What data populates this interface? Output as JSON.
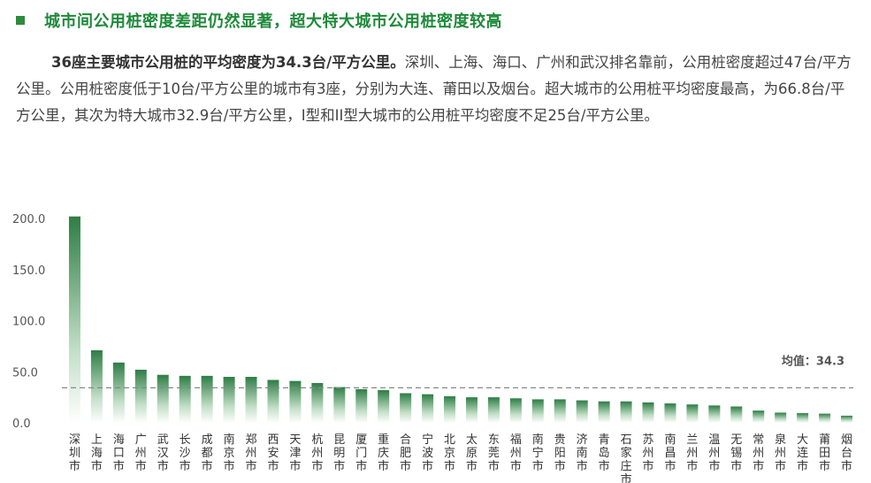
{
  "section": {
    "heading": "城市间公用桩密度差距仍然显著，超大特大城市公用桩密度较高",
    "paragraph_bold": "36座主要城市公用桩的平均密度为34.3台/平方公里。",
    "paragraph_rest": "深圳、上海、海口、广州和武汉排名靠前，公用桩密度超过47台/平方公里。公用桩密度低于10台/平方公里的城市有3座，分别为大连、莆田以及烟台。超大城市的公用桩平均密度最高，为66.8台/平方公里，其次为特大城市32.9台/平方公里，I型和II型大城市的公用桩平均密度不足25台/平方公里。"
  },
  "colors": {
    "heading": "#1f8a3a",
    "bar_dark": "#2e7d45",
    "bar_light": "#ffffff",
    "mean_line": "#888888"
  },
  "chart_data": {
    "type": "bar",
    "categories": [
      "深圳市",
      "上海市",
      "海口市",
      "广州市",
      "武汉市",
      "长沙市",
      "成都市",
      "南京市",
      "郑州市",
      "西安市",
      "天津市",
      "杭州市",
      "昆明市",
      "厦门市",
      "重庆市",
      "合肥市",
      "宁波市",
      "北京市",
      "太原市",
      "东莞市",
      "福州市",
      "南宁市",
      "贵阳市",
      "济南市",
      "青岛市",
      "石家庄市",
      "苏州市",
      "南昌市",
      "兰州市",
      "温州市",
      "无锡市",
      "常州市",
      "泉州市",
      "大连市",
      "莆田市",
      "烟台市"
    ],
    "values": [
      202,
      71,
      59,
      52,
      47,
      46,
      46,
      45,
      45,
      42,
      41,
      39,
      35,
      33,
      32,
      29,
      28,
      26,
      25,
      25,
      24,
      23,
      23,
      22,
      21,
      21,
      20,
      19,
      18,
      17,
      16,
      12,
      10,
      9.5,
      9,
      7
    ],
    "yticks": [
      "0.0",
      "50.0",
      "100.0",
      "150.0",
      "200.0"
    ],
    "ylim": [
      0,
      200
    ],
    "mean_value": 34.3,
    "mean_label": "均值：34.3",
    "grid": false,
    "legend": "none"
  }
}
